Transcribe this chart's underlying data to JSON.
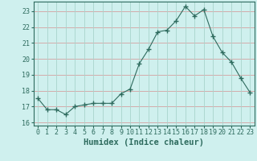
{
  "x": [
    0,
    1,
    2,
    3,
    4,
    5,
    6,
    7,
    8,
    9,
    10,
    11,
    12,
    13,
    14,
    15,
    16,
    17,
    18,
    19,
    20,
    21,
    22,
    23
  ],
  "y": [
    17.5,
    16.8,
    16.8,
    16.5,
    17.0,
    17.1,
    17.2,
    17.2,
    17.2,
    17.8,
    18.1,
    19.7,
    20.6,
    21.7,
    21.8,
    22.4,
    23.3,
    22.7,
    23.1,
    21.4,
    20.4,
    19.8,
    18.8,
    17.9
  ],
  "line_color": "#2e6b5e",
  "marker": "+",
  "marker_size": 4,
  "bg_color": "#cff0ee",
  "grid_color_h": "#d4a0a0",
  "grid_color_v": "#a8d4cc",
  "tick_color": "#2e6b5e",
  "xlabel": "Humidex (Indice chaleur)",
  "xlabel_fontsize": 7.5,
  "ylim": [
    15.8,
    23.6
  ],
  "yticks": [
    16,
    17,
    18,
    19,
    20,
    21,
    22,
    23
  ],
  "xlim": [
    -0.5,
    23.5
  ],
  "xticks": [
    0,
    1,
    2,
    3,
    4,
    5,
    6,
    7,
    8,
    9,
    10,
    11,
    12,
    13,
    14,
    15,
    16,
    17,
    18,
    19,
    20,
    21,
    22,
    23
  ]
}
